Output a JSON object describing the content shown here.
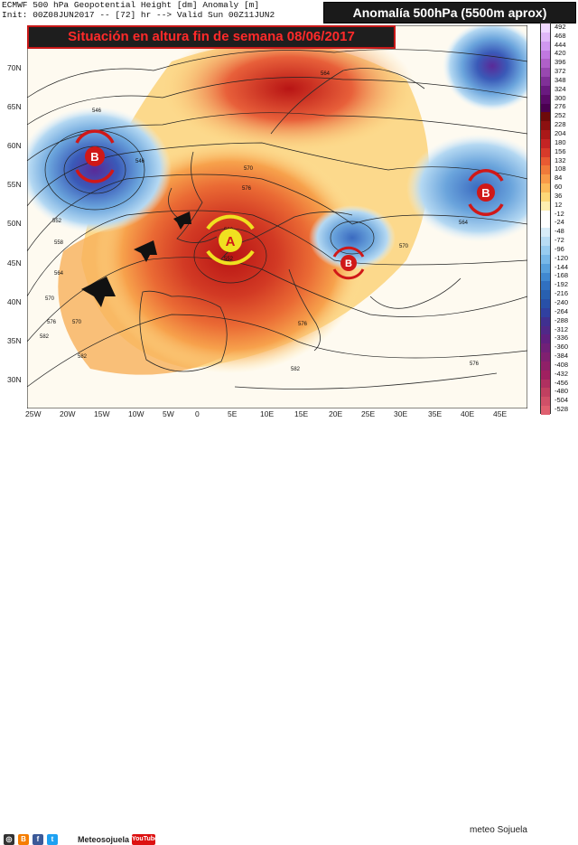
{
  "header": {
    "line1": "ECMWF 500 hPa Geopotential Height [dm] Anomaly [m]",
    "line2": "Init: 00Z08JUN2017 -- [72] hr --> Valid Sun 00Z11JUN2"
  },
  "title_box": "Anomalía 500hPa (5500m aprox)",
  "subtitle": "Situación en altura fin de semana 08/06/2017",
  "map": {
    "lon_ticks": [
      "25W",
      "20W",
      "15W",
      "10W",
      "5W",
      "0",
      "5E",
      "10E",
      "15E",
      "20E",
      "25E",
      "30E",
      "35E",
      "40E",
      "45E"
    ],
    "lat_ticks": [
      "70N",
      "65N",
      "60N",
      "55N",
      "50N",
      "45N",
      "40N",
      "35N",
      "30N"
    ],
    "contour_labels": [
      "546",
      "552",
      "558",
      "564",
      "570",
      "576",
      "582",
      "564",
      "570",
      "576",
      "582",
      "552",
      "558",
      "564",
      "570",
      "576",
      "582",
      "546",
      "570",
      "582",
      "576"
    ],
    "pressure_centers": [
      {
        "label": "B",
        "kind": "low"
      },
      {
        "label": "A",
        "kind": "high"
      },
      {
        "label": "B",
        "kind": "low"
      },
      {
        "label": "B",
        "kind": "low"
      }
    ]
  },
  "colorbar": {
    "labels": [
      "492",
      "468",
      "444",
      "420",
      "396",
      "372",
      "348",
      "324",
      "300",
      "276",
      "252",
      "228",
      "204",
      "180",
      "156",
      "132",
      "108",
      "84",
      "60",
      "36",
      "12",
      "-12",
      "-24",
      "-48",
      "-72",
      "-96",
      "-120",
      "-144",
      "-168",
      "-192",
      "-216",
      "-240",
      "-264",
      "-288",
      "-312",
      "-336",
      "-360",
      "-384",
      "-408",
      "-432",
      "-456",
      "-480",
      "-504",
      "-528"
    ],
    "colors": [
      "#f0d8ff",
      "#e0b8f8",
      "#d098f0",
      "#c078e0",
      "#b060c8",
      "#9848b0",
      "#803098",
      "#6a1a80",
      "#5a0a68",
      "#4a0050",
      "#6e0a0a",
      "#8c1010",
      "#aa1818",
      "#c42424",
      "#d83a2a",
      "#e85a32",
      "#f07a3a",
      "#f89a48",
      "#fbba5a",
      "#fdd878",
      "#feeeb0",
      "#ffffff",
      "#ffffff",
      "#d8ecf8",
      "#b8dcf4",
      "#98ccf0",
      "#78b8e8",
      "#58a0dc",
      "#4088d0",
      "#3070c0",
      "#2860b0",
      "#2850a8",
      "#3040a0",
      "#403090",
      "#502888",
      "#602080",
      "#702078",
      "#802070",
      "#902068",
      "#a02060",
      "#b03060",
      "#c04060",
      "#d05068",
      "#e06070"
    ]
  },
  "footer": {
    "icons": [
      "instagram-icon",
      "blogger-icon",
      "facebook-icon",
      "twitter-icon"
    ],
    "handle": "Meteosojuela",
    "youtube": "YouTube",
    "brand": "meteo Sojuela"
  }
}
